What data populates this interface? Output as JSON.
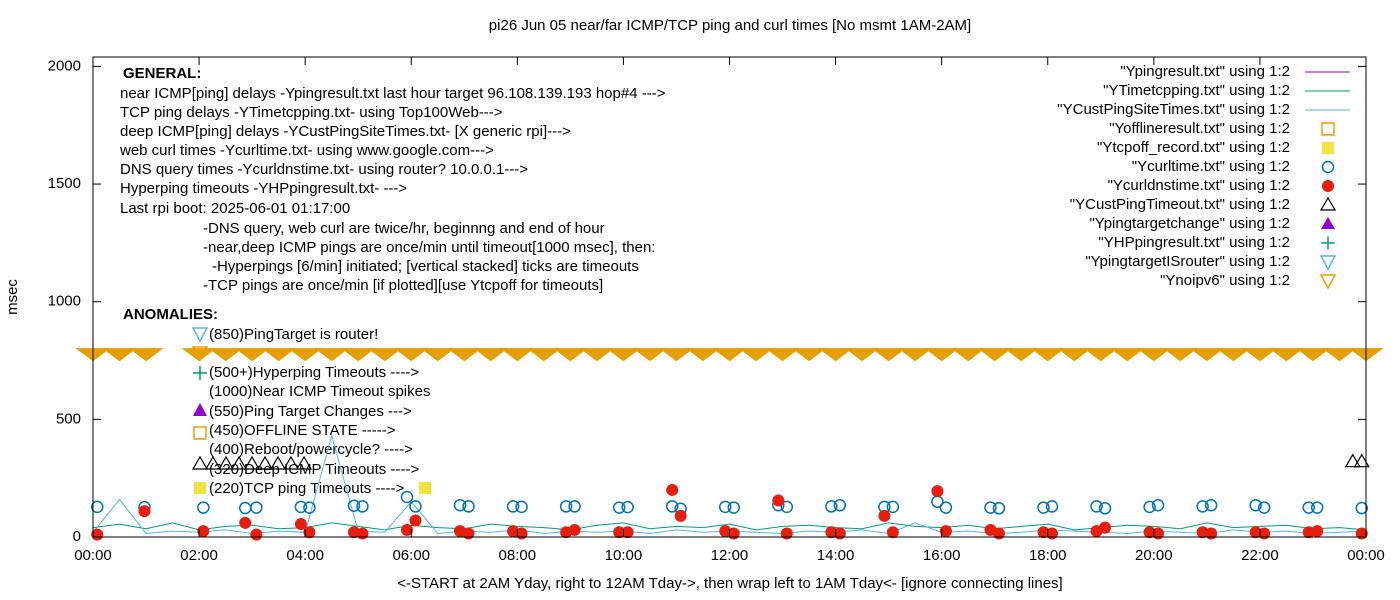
{
  "chart_data": {
    "type": "scatter",
    "title": "pi26 Jun 05  near/far ICMP/TCP ping and curl times [No msmt 1AM-2AM]",
    "xlabel": "<-START at 2AM Yday, right to 12AM Tday->, then wrap left to 1AM Tday<- [ignore connecting lines]",
    "ylabel": "msec",
    "xlim": [
      0,
      24
    ],
    "ylim": [
      0,
      2040
    ],
    "xticks": [
      {
        "value": 0,
        "label": "00:00"
      },
      {
        "value": 2,
        "label": "02:00"
      },
      {
        "value": 4,
        "label": "04:00"
      },
      {
        "value": 6,
        "label": "06:00"
      },
      {
        "value": 8,
        "label": "08:00"
      },
      {
        "value": 10,
        "label": "10:00"
      },
      {
        "value": 12,
        "label": "12:00"
      },
      {
        "value": 14,
        "label": "14:00"
      },
      {
        "value": 16,
        "label": "16:00"
      },
      {
        "value": 18,
        "label": "18:00"
      },
      {
        "value": 20,
        "label": "20:00"
      },
      {
        "value": 22,
        "label": "22:00"
      },
      {
        "value": 24,
        "label": "00:00"
      }
    ],
    "yticks": [
      0,
      500,
      1000,
      1500,
      2000
    ],
    "grid": false,
    "legend": "upper-right",
    "annotations": [
      "GENERAL:",
      "near ICMP[ping] delays -Ypingresult.txt last hour target 96.108.139.193 hop#4 --->",
      "TCP ping delays -YTimetcpping.txt- using Top100Web--->",
      "deep ICMP[ping] delays -YCustPingSiteTimes.txt- [X generic rpi]--->",
      "web curl times -Ycurltime.txt- using www.google.com--->",
      "DNS query times -Ycurldnstime.txt- using router? 10.0.0.1--->",
      "Hyperping timeouts -YHPpingresult.txt- --->",
      "Last rpi boot: 2025-06-01 01:17:00",
      "-DNS query, web curl are twice/hr, beginnng and end of hour",
      "-near,deep ICMP pings are once/min until timeout[1000 msec], then:",
      "-Hyperpings [6/min] initiated; [vertical stacked] ticks are timeouts",
      "-TCP pings are once/min [if plotted][use Ytcpoff for timeouts]",
      "ANOMALIES:",
      "(850)PingTarget is router!",
      "(500+)Hyperping Timeouts ---->",
      "(1000)Near ICMP Timeout spikes",
      "(550)Ping Target Changes --->",
      "(450)OFFLINE STATE ----->",
      "(400)Reboot/powercycle? ---->",
      "(320)Deep ICMP Timeouts ---->",
      "(220)TCP ping Timeouts ---->"
    ],
    "series": [
      {
        "name": "\"Ypingresult.txt\" using 1:2",
        "color": "#9400d3",
        "marker": "line",
        "x": [],
        "values": []
      },
      {
        "name": "\"YTimetcpping.txt\" using 1:2",
        "color": "#009e73",
        "marker": "line",
        "x": [
          0,
          0.5,
          1,
          1.5,
          2,
          2.5,
          3,
          3.5,
          4,
          4.5,
          5,
          5.5,
          6,
          6.5,
          7,
          7.5,
          8,
          8.5,
          9,
          9.5,
          10,
          10.5,
          11,
          11.5,
          12,
          12.5,
          13,
          13.5,
          14,
          14.5,
          15,
          15.5,
          16,
          16.5,
          17,
          17.5,
          18,
          18.5,
          19,
          19.5,
          20,
          20.5,
          21,
          21.5,
          22,
          22.5,
          23,
          23.5,
          24
        ],
        "values": [
          40,
          55,
          35,
          60,
          30,
          45,
          50,
          35,
          40,
          60,
          45,
          30,
          50,
          40,
          35,
          55,
          45,
          40,
          30,
          50,
          60,
          35,
          45,
          40,
          55,
          30,
          45,
          50,
          40,
          35,
          60,
          45,
          40,
          50,
          35,
          45,
          55,
          30,
          40,
          50,
          45,
          35,
          60,
          40,
          45,
          50,
          35,
          40,
          30
        ]
      },
      {
        "name": "\"YCustPingSiteTimes.txt\" using 1:2",
        "color": "#56b4e9",
        "marker": "line",
        "x": [
          0,
          0.5,
          1,
          1.5,
          2,
          2.5,
          3,
          3.5,
          4,
          4.5,
          5,
          5.5,
          6,
          6.5,
          7,
          7.5,
          8,
          8.5,
          9,
          9.5,
          10,
          10.5,
          11,
          11.5,
          12,
          12.5,
          13,
          13.5,
          14,
          14.5,
          15,
          15.5,
          16,
          16.5,
          17,
          17.5,
          18,
          18.5,
          19,
          19.5,
          20,
          20.5,
          21,
          21.5,
          22,
          22.5,
          23,
          23.5,
          24
        ],
        "values": [
          20,
          160,
          15,
          25,
          20,
          30,
          15,
          25,
          20,
          430,
          25,
          20,
          150,
          15,
          25,
          20,
          30,
          15,
          25,
          20,
          25,
          15,
          30,
          20,
          25,
          20,
          15,
          25,
          20,
          30,
          15,
          60,
          20,
          25,
          15,
          20,
          30,
          25,
          20,
          15,
          25,
          20,
          15,
          30,
          20,
          25,
          15,
          20,
          25
        ]
      },
      {
        "name": "\"Yofflineresult.txt\" using 1:2",
        "color": "#e69f00",
        "marker": "square-open",
        "x": [],
        "values": []
      },
      {
        "name": "\"Ytcpoff_record.txt\" using 1:2",
        "color": "#f0e442",
        "marker": "square",
        "x": [],
        "values": []
      },
      {
        "name": "\"Ycurltime.txt\" using 1:2",
        "color": "#0072b2",
        "marker": "circle-open",
        "x": [
          0.08,
          0.97,
          2.08,
          2.87,
          3.08,
          3.92,
          4.08,
          4.92,
          5.08,
          5.92,
          6.08,
          6.92,
          7.08,
          7.92,
          8.08,
          8.92,
          9.08,
          9.92,
          10.08,
          10.92,
          11.08,
          11.92,
          12.08,
          12.92,
          13.08,
          13.92,
          14.08,
          14.92,
          15.08,
          15.92,
          16.08,
          16.92,
          17.08,
          17.92,
          18.08,
          18.92,
          19.08,
          19.92,
          20.08,
          20.92,
          21.08,
          21.92,
          22.08,
          22.92,
          23.08,
          23.92
        ],
        "values": [
          128,
          127,
          125,
          123,
          125,
          128,
          125,
          133,
          130,
          170,
          130,
          135,
          130,
          130,
          128,
          130,
          130,
          125,
          127,
          130,
          120,
          128,
          125,
          135,
          128,
          130,
          135,
          128,
          128,
          150,
          125,
          125,
          122,
          125,
          130,
          130,
          122,
          128,
          135,
          130,
          135,
          135,
          125,
          125,
          125,
          123
        ]
      },
      {
        "name": "\"Ycurldnstime.txt\" using 1:2",
        "color": "#e51e10",
        "marker": "circle",
        "x": [
          0.08,
          0.97,
          2.08,
          2.87,
          3.08,
          3.92,
          4.08,
          4.92,
          5.08,
          5.92,
          6.08,
          6.92,
          7.08,
          7.92,
          8.08,
          8.92,
          9.08,
          9.92,
          10.08,
          10.92,
          11.08,
          11.92,
          12.08,
          12.92,
          13.08,
          13.92,
          14.08,
          14.92,
          15.08,
          15.92,
          16.08,
          16.92,
          17.08,
          17.92,
          18.08,
          18.92,
          19.08,
          19.92,
          20.08,
          20.92,
          21.08,
          21.92,
          22.08,
          22.92,
          23.08,
          23.92
        ],
        "values": [
          10,
          110,
          25,
          60,
          10,
          55,
          20,
          20,
          15,
          30,
          70,
          25,
          15,
          25,
          15,
          20,
          30,
          20,
          20,
          200,
          90,
          25,
          15,
          155,
          15,
          20,
          15,
          90,
          20,
          195,
          25,
          30,
          15,
          20,
          15,
          25,
          40,
          20,
          15,
          20,
          15,
          20,
          15,
          20,
          25,
          15
        ]
      },
      {
        "name": "\"YCustPingTimeout.txt\" using 1:2",
        "color": "#000000",
        "marker": "triangle-open",
        "x": [
          23.75,
          23.92
        ],
        "values": [
          320,
          320
        ]
      },
      {
        "name": "\"Ypingtargetchange\" using 1:2",
        "color": "#9400d3",
        "marker": "triangle",
        "x": [],
        "values": []
      },
      {
        "name": "\"YHPpingresult.txt\" using 1:2",
        "color": "#009e73",
        "marker": "plus",
        "x": [],
        "values": []
      },
      {
        "name": "\"YpingtargetISrouter\" using 1:2",
        "color": "#56b4e9",
        "marker": "triangle-down-open",
        "x": [],
        "values": []
      },
      {
        "name": "\"Ynoipv6\" using 1:2",
        "color": "#e69f00",
        "marker": "triangle-down-open",
        "x": [
          0,
          0.5,
          1,
          2,
          2.5,
          3,
          3.5,
          4,
          4.5,
          5,
          5.5,
          6,
          6.5,
          7,
          7.5,
          8,
          8.5,
          9,
          9.5,
          10,
          10.5,
          11,
          11.5,
          12,
          12.5,
          13,
          13.5,
          14,
          14.5,
          15,
          15.5,
          16,
          16.5,
          17,
          17.5,
          18,
          18.5,
          19,
          19.5,
          20,
          20.5,
          21,
          21.5,
          22,
          22.5,
          23,
          23.5,
          24
        ],
        "values": [
          775,
          775,
          775,
          775,
          775,
          775,
          775,
          775,
          775,
          775,
          775,
          775,
          775,
          775,
          775,
          775,
          775,
          775,
          775,
          775,
          775,
          775,
          775,
          775,
          775,
          775,
          775,
          775,
          775,
          775,
          775,
          775,
          775,
          775,
          775,
          775,
          775,
          775,
          775,
          775,
          775,
          775,
          775,
          775,
          775,
          775,
          775,
          775
        ]
      }
    ]
  }
}
